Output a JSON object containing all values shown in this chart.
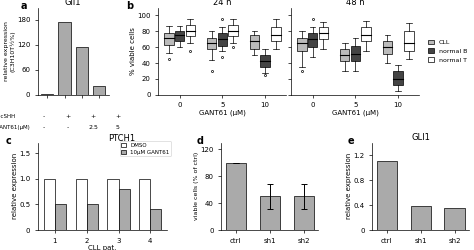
{
  "panel_a": {
    "title": "Gli1",
    "ylabel": "relative expression\n(C3H10T½%)",
    "xlabel_rows": [
      "recSHH",
      "GANT61(μM)"
    ],
    "xlabel_vals": [
      [
        "-",
        "+",
        "+",
        "+"
      ],
      [
        "-",
        "-",
        "2.5",
        "5"
      ]
    ],
    "bars": [
      2,
      175,
      115,
      20
    ],
    "bar_color": "#aaaaaa",
    "ylim": [
      0,
      210
    ],
    "yticks": [
      0,
      60,
      120,
      180
    ]
  },
  "panel_b_24h": {
    "title": "24 h",
    "ylabel": "% viable cells",
    "xlabel": "GANT61 (μM)",
    "xtick_labels": [
      "0",
      "5",
      "10"
    ],
    "ylim": [
      0,
      110
    ],
    "yticks": [
      0,
      20,
      40,
      60,
      80,
      100
    ],
    "cll_boxes": [
      {
        "med": 72,
        "q1": 63,
        "q3": 78,
        "whislo": 53,
        "whishi": 87,
        "fliers": [
          45
        ]
      },
      {
        "med": 65,
        "q1": 58,
        "q3": 72,
        "whislo": 44,
        "whishi": 80,
        "fliers": [
          30
        ]
      },
      {
        "med": 68,
        "q1": 58,
        "q3": 75,
        "whislo": 50,
        "whishi": 80,
        "fliers": []
      }
    ],
    "normalB_boxes": [
      {
        "med": 75,
        "q1": 68,
        "q3": 80,
        "whislo": 60,
        "whishi": 87,
        "fliers": []
      },
      {
        "med": 70,
        "q1": 62,
        "q3": 78,
        "whislo": 55,
        "whishi": 85,
        "fliers": [
          48,
          95
        ]
      },
      {
        "med": 42,
        "q1": 35,
        "q3": 50,
        "whislo": 28,
        "whishi": 58,
        "fliers": [
          25
        ]
      }
    ],
    "normalT_boxes": [
      {
        "med": 80,
        "q1": 74,
        "q3": 88,
        "whislo": 65,
        "whishi": 96,
        "fliers": [
          55
        ]
      },
      {
        "med": 80,
        "q1": 74,
        "q3": 88,
        "whislo": 65,
        "whishi": 96,
        "fliers": [
          60
        ]
      },
      {
        "med": 75,
        "q1": 68,
        "q3": 85,
        "whislo": 58,
        "whishi": 95,
        "fliers": []
      }
    ]
  },
  "panel_b_48h": {
    "title": "48 h",
    "xlabel": "GANT61 (μM)",
    "xtick_labels": [
      "0",
      "5",
      "10"
    ],
    "ylim": [
      0,
      110
    ],
    "yticks": [
      0,
      20,
      40,
      60,
      80,
      100
    ],
    "cll_boxes": [
      {
        "med": 65,
        "q1": 55,
        "q3": 72,
        "whislo": 35,
        "whishi": 80,
        "fliers": [
          30
        ]
      },
      {
        "med": 50,
        "q1": 42,
        "q3": 58,
        "whislo": 30,
        "whishi": 65,
        "fliers": []
      },
      {
        "med": 60,
        "q1": 52,
        "q3": 68,
        "whislo": 40,
        "whishi": 75,
        "fliers": []
      }
    ],
    "normalB_boxes": [
      {
        "med": 70,
        "q1": 60,
        "q3": 78,
        "whislo": 48,
        "whishi": 85,
        "fliers": [
          95
        ]
      },
      {
        "med": 52,
        "q1": 42,
        "q3": 62,
        "whislo": 30,
        "whishi": 72,
        "fliers": []
      },
      {
        "med": 20,
        "q1": 12,
        "q3": 30,
        "whislo": 5,
        "whishi": 38,
        "fliers": []
      }
    ],
    "normalT_boxes": [
      {
        "med": 78,
        "q1": 70,
        "q3": 86,
        "whislo": 58,
        "whishi": 92,
        "fliers": []
      },
      {
        "med": 75,
        "q1": 68,
        "q3": 85,
        "whislo": 55,
        "whishi": 93,
        "fliers": []
      },
      {
        "med": 65,
        "q1": 55,
        "q3": 80,
        "whislo": 45,
        "whishi": 90,
        "fliers": []
      }
    ]
  },
  "panel_c": {
    "title": "PTCH1",
    "ylabel": "relative expression",
    "xlabel": "CLL pat.",
    "patients": [
      "1",
      "2",
      "3",
      "4"
    ],
    "dmso_vals": [
      1.0,
      1.0,
      1.0,
      1.0
    ],
    "gant61_vals": [
      0.5,
      0.5,
      0.8,
      0.4
    ],
    "ylim": [
      0,
      1.7
    ],
    "yticks": [
      0,
      0.5,
      1.0,
      1.5
    ],
    "legend_labels": [
      "DMSO",
      "10μM GANT61"
    ],
    "dmso_color": "white",
    "gant61_color": "#aaaaaa"
  },
  "panel_d": {
    "ylabel": "viable cells (% of ctrl)",
    "xtick_labels": [
      "ctrl",
      "sh1",
      "sh2"
    ],
    "bars": [
      100,
      50,
      50
    ],
    "errors": [
      0,
      18,
      18
    ],
    "ylim": [
      0,
      130
    ],
    "yticks": [
      0,
      40,
      80,
      120
    ],
    "bar_color": "#aaaaaa"
  },
  "panel_e": {
    "title": "GLI1",
    "ylabel": "relative expression",
    "xtick_labels": [
      "ctrl",
      "sh1",
      "sh2"
    ],
    "bars": [
      1.1,
      0.38,
      0.35
    ],
    "ylim": [
      0,
      1.4
    ],
    "yticks": [
      0,
      0.4,
      0.8,
      1.2
    ],
    "bar_color": "#aaaaaa"
  },
  "legend": {
    "cll_color": "#bbbbbb",
    "normalB_color": "#444444",
    "normalT_color": "white",
    "labels": [
      "CLL",
      "normal B",
      "normal T"
    ]
  },
  "bg_color": "#ffffff",
  "text_color": "#000000"
}
